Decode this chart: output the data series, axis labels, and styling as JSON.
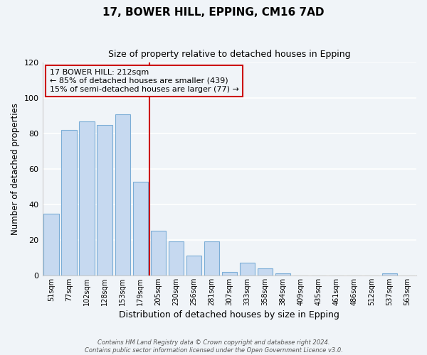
{
  "title": "17, BOWER HILL, EPPING, CM16 7AD",
  "subtitle": "Size of property relative to detached houses in Epping",
  "xlabel": "Distribution of detached houses by size in Epping",
  "ylabel": "Number of detached properties",
  "bar_labels": [
    "51sqm",
    "77sqm",
    "102sqm",
    "128sqm",
    "153sqm",
    "179sqm",
    "205sqm",
    "230sqm",
    "256sqm",
    "281sqm",
    "307sqm",
    "333sqm",
    "358sqm",
    "384sqm",
    "409sqm",
    "435sqm",
    "461sqm",
    "486sqm",
    "512sqm",
    "537sqm",
    "563sqm"
  ],
  "bar_heights": [
    35,
    82,
    87,
    85,
    91,
    53,
    25,
    19,
    11,
    19,
    2,
    7,
    4,
    1,
    0,
    0,
    0,
    0,
    0,
    1,
    0
  ],
  "bar_color": "#c6d9f0",
  "bar_edge_color": "#7badd6",
  "vline_color": "#cc0000",
  "annotation_text": "17 BOWER HILL: 212sqm\n← 85% of detached houses are smaller (439)\n15% of semi-detached houses are larger (77) →",
  "annotation_box_edge_color": "#cc0000",
  "ylim": [
    0,
    120
  ],
  "yticks": [
    0,
    20,
    40,
    60,
    80,
    100,
    120
  ],
  "footnote1": "Contains HM Land Registry data © Crown copyright and database right 2024.",
  "footnote2": "Contains public sector information licensed under the Open Government Licence v3.0.",
  "background_color": "#f0f4f8",
  "grid_color": "#ffffff"
}
